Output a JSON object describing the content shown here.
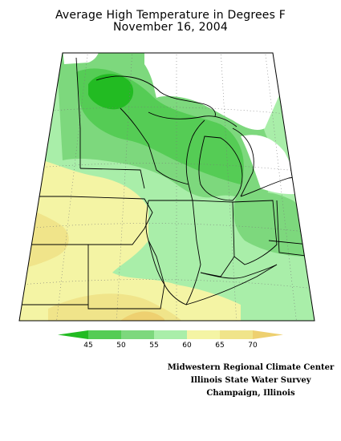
{
  "title": {
    "line1": "Average High Temperature in Degrees F",
    "line2": "November 16, 2004"
  },
  "legend": {
    "ticks": [
      "45",
      "50",
      "55",
      "60",
      "65",
      "70"
    ],
    "bins": [
      {
        "range": "<45",
        "color": "#22bb22"
      },
      {
        "range": "45-50",
        "color": "#55cc55"
      },
      {
        "range": "50-55",
        "color": "#7dd87d"
      },
      {
        "range": "55-60",
        "color": "#a9eea9"
      },
      {
        "range": "60-65",
        "color": "#f4f4a4"
      },
      {
        "range": "65-70",
        "color": "#f0e48a"
      },
      {
        "range": ">70",
        "color": "#eed070"
      }
    ]
  },
  "credits": {
    "line1": "Midwestern Regional Climate Center",
    "line2": "Illinois State Water Survey",
    "line3": "Champaign, Illinois"
  },
  "colors": {
    "no_data": "#ffffff",
    "land_outline": "#000000",
    "grid": "#888888"
  }
}
